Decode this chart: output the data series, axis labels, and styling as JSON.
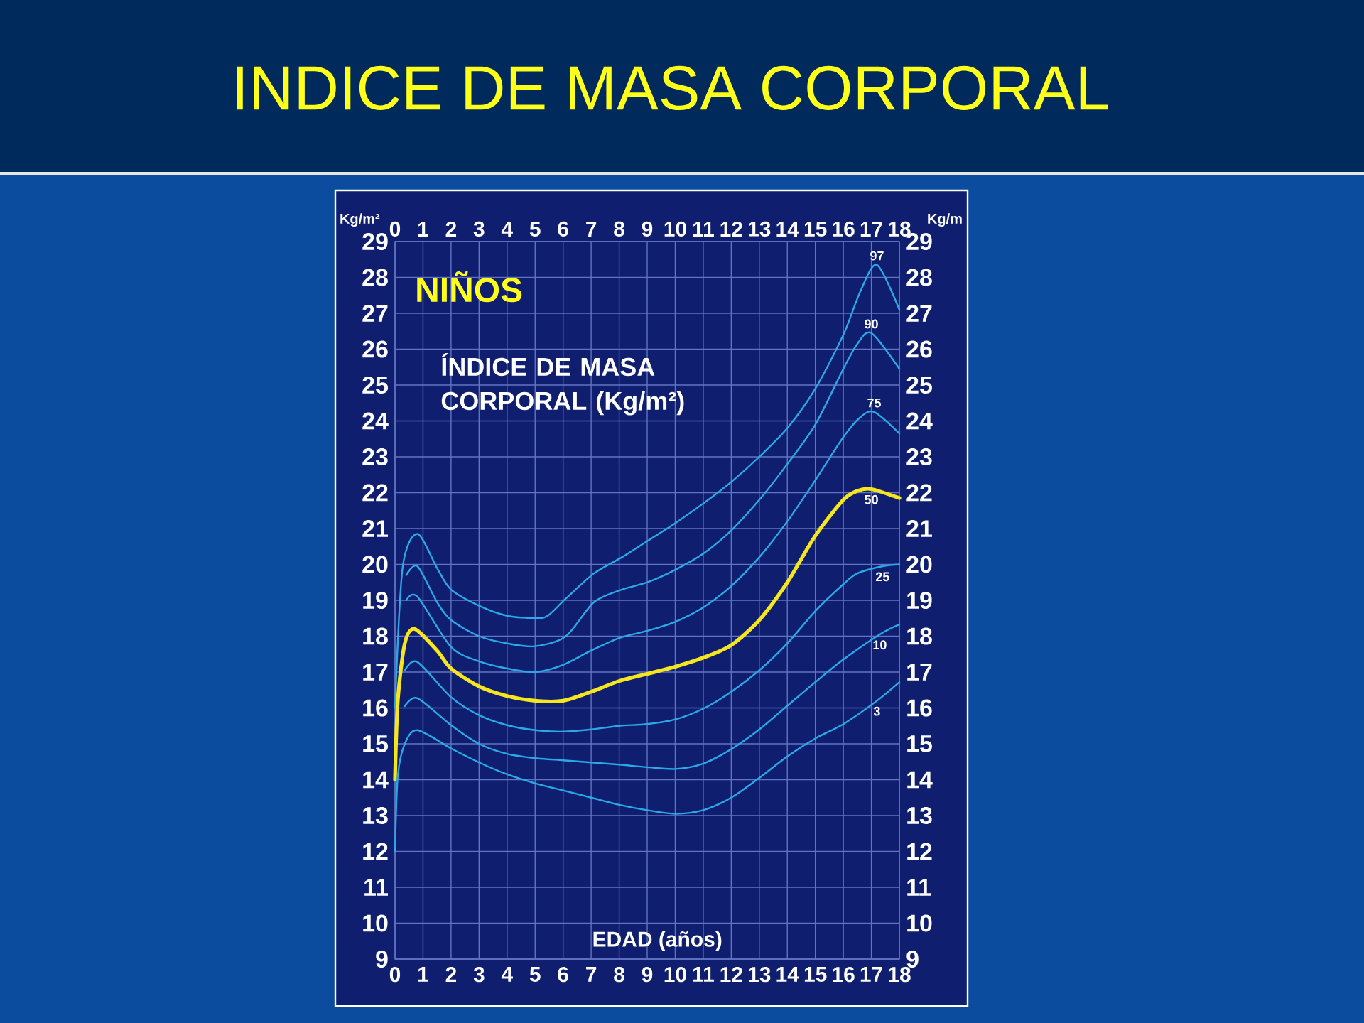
{
  "chart_data": {
    "type": "line",
    "title": "INDICE DE MASA CORPORAL",
    "subtitle": "NIÑOS",
    "xlabel": "EDAD (años)",
    "ylabel": "Kg/m²",
    "y2label": "Kg/m",
    "annotations": [
      "ÍNDICE DE MASA CORPORAL (Kg/m²)"
    ],
    "xlim": [
      0,
      18
    ],
    "xticks": [
      0,
      1,
      2,
      3,
      4,
      5,
      6,
      7,
      8,
      9,
      10,
      11,
      12,
      13,
      14,
      15,
      16,
      17,
      18
    ],
    "x2lim": [
      0,
      18
    ],
    "x2ticks": [
      0,
      1,
      2,
      3,
      4,
      5,
      6,
      7,
      8,
      9,
      10,
      11,
      12,
      13,
      14,
      15,
      16,
      17,
      18
    ],
    "ylim": [
      9,
      29
    ],
    "yticks": [
      9,
      10,
      11,
      12,
      13,
      14,
      15,
      16,
      17,
      18,
      19,
      20,
      21,
      22,
      23,
      24,
      25,
      26,
      27,
      28,
      29
    ],
    "y2lim": [
      9,
      29
    ],
    "y2ticks": [
      9,
      10,
      11,
      12,
      13,
      14,
      15,
      16,
      17,
      18,
      19,
      20,
      21,
      22,
      23,
      24,
      25,
      26,
      27,
      28,
      29
    ],
    "grid": true,
    "marker": "none",
    "line_style": "solid",
    "series": [
      {
        "name": "97",
        "color": "#2aa9e6",
        "x": [
          0,
          0.27,
          0.8,
          1.5,
          2,
          3,
          4,
          5,
          5.45,
          6.1,
          7.1,
          8.1,
          9,
          10,
          11,
          12,
          13,
          14,
          15,
          16,
          16.6,
          17.2,
          18
        ],
        "values": [
          16.0,
          19.9,
          20.85,
          19.9,
          19.3,
          18.85,
          18.57,
          18.5,
          18.57,
          19.05,
          19.75,
          20.2,
          20.65,
          21.15,
          21.7,
          22.3,
          23.0,
          23.8,
          24.9,
          26.4,
          27.6,
          28.35,
          27.1
        ]
      },
      {
        "name": "90",
        "color": "#2aa9e6",
        "x": [
          0.4,
          0.8,
          1.5,
          2,
          3,
          4,
          5,
          6.1,
          7.1,
          8.1,
          9,
          10,
          11,
          12,
          13,
          14,
          15,
          16,
          16.5,
          17,
          18
        ],
        "values": [
          19.7,
          19.95,
          18.95,
          18.45,
          18.0,
          17.8,
          17.72,
          18.0,
          18.95,
          19.3,
          19.5,
          19.85,
          20.3,
          20.95,
          21.8,
          22.8,
          23.9,
          25.45,
          26.15,
          26.45,
          25.45
        ]
      },
      {
        "name": "75",
        "color": "#2aa9e6",
        "x": [
          0.4,
          0.8,
          2,
          3,
          4,
          5,
          6,
          7,
          8,
          9,
          10,
          11,
          12,
          13,
          14,
          15,
          16,
          16.6,
          17.1,
          18
        ],
        "values": [
          19.0,
          19.1,
          17.7,
          17.3,
          17.1,
          17.0,
          17.2,
          17.6,
          17.95,
          18.15,
          18.4,
          18.8,
          19.4,
          20.2,
          21.2,
          22.35,
          23.55,
          24.1,
          24.25,
          23.65
        ]
      },
      {
        "name": "50",
        "color": "#f5e61e",
        "x": [
          0,
          0.1,
          0.35,
          0.7,
          1.5,
          2,
          3,
          4,
          5,
          6,
          7,
          8,
          9,
          10,
          11,
          12,
          13,
          14,
          15,
          16,
          16.5,
          17,
          18
        ],
        "values": [
          14.0,
          16.2,
          17.8,
          18.2,
          17.6,
          17.1,
          16.6,
          16.33,
          16.2,
          16.2,
          16.45,
          16.75,
          16.95,
          17.15,
          17.4,
          17.75,
          18.45,
          19.5,
          20.8,
          21.8,
          22.05,
          22.1,
          21.85
        ]
      },
      {
        "name": "25",
        "color": "#2aa9e6",
        "x": [
          0.35,
          0.8,
          2,
          3,
          4,
          5,
          6,
          7,
          8,
          9,
          10,
          11,
          12,
          13,
          14,
          15,
          16,
          16.5,
          17.4,
          18
        ],
        "values": [
          17.05,
          17.28,
          16.3,
          15.8,
          15.52,
          15.38,
          15.34,
          15.4,
          15.5,
          15.55,
          15.68,
          15.98,
          16.45,
          17.05,
          17.8,
          18.7,
          19.45,
          19.75,
          19.95,
          20.0
        ]
      },
      {
        "name": "10",
        "color": "#2aa9e6",
        "x": [
          0.35,
          0.8,
          2,
          3,
          4,
          5,
          6,
          7,
          8,
          9,
          10,
          11,
          12,
          13,
          14,
          15,
          16,
          17.3,
          18
        ],
        "values": [
          16.05,
          16.27,
          15.52,
          15.0,
          14.72,
          14.6,
          14.54,
          14.48,
          14.42,
          14.35,
          14.3,
          14.45,
          14.85,
          15.4,
          16.06,
          16.72,
          17.35,
          18.05,
          18.33
        ]
      },
      {
        "name": "3",
        "color": "#2aa9e6",
        "x": [
          0,
          0.1,
          0.35,
          0.8,
          2,
          3,
          4,
          5,
          6,
          7,
          8,
          9,
          10,
          11,
          12,
          13,
          14,
          15,
          16,
          17.2,
          18
        ],
        "values": [
          12.0,
          14.1,
          15.0,
          15.38,
          14.87,
          14.48,
          14.15,
          13.9,
          13.7,
          13.5,
          13.3,
          13.15,
          13.05,
          13.15,
          13.5,
          14.05,
          14.65,
          15.15,
          15.55,
          16.2,
          16.72
        ]
      }
    ]
  }
}
